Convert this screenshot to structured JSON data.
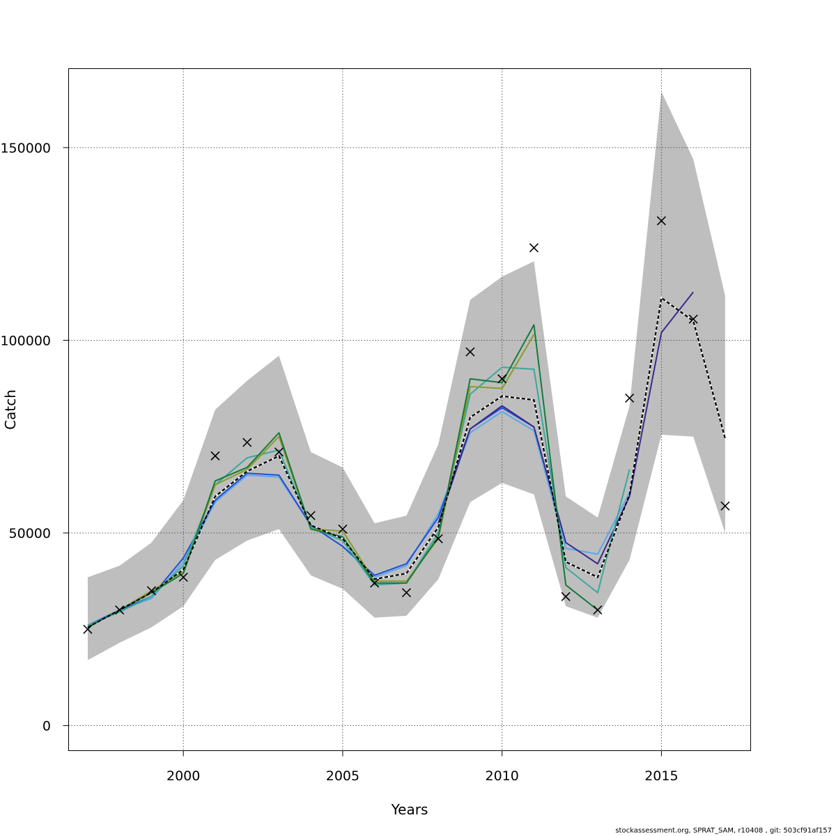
{
  "chart_data": {
    "type": "line",
    "title": "",
    "xlabel": "Years",
    "ylabel": "Catch",
    "xlim": [
      1996.4,
      2017.8
    ],
    "ylim": [
      -6500,
      170500
    ],
    "x_ticks": [
      2000,
      2005,
      2010,
      2015
    ],
    "y_ticks": [
      0,
      50000,
      100000,
      150000
    ],
    "x_tick_labels": [
      "2000",
      "2005",
      "2010",
      "2015"
    ],
    "y_tick_labels": [
      "0",
      "50000",
      "100000",
      "150000"
    ],
    "grid": true,
    "legend": "none",
    "confidence_band": {
      "color": "#bebebe",
      "x": [
        1997,
        1998,
        1999,
        2000,
        2001,
        2002,
        2003,
        2004,
        2005,
        2006,
        2007,
        2008,
        2009,
        2010,
        2011,
        2012,
        2013,
        2014,
        2015,
        2016,
        2017
      ],
      "lower": [
        17000,
        21500,
        25500,
        31000,
        43000,
        48000,
        51000,
        39000,
        35500,
        28000,
        28500,
        38000,
        58000,
        63000,
        60000,
        31000,
        28000,
        43000,
        75500,
        75000,
        50000
      ],
      "upper": [
        38500,
        41500,
        47500,
        58500,
        82000,
        89500,
        96000,
        71000,
        67000,
        52500,
        54500,
        73000,
        110500,
        116500,
        120500,
        59500,
        54000,
        83000,
        164500,
        147000,
        111500
      ]
    },
    "series": [
      {
        "color": "#000000",
        "dashed": true,
        "x": [
          1997,
          1998,
          1999,
          2000,
          2001,
          2002,
          2003,
          2004,
          2005,
          2006,
          2007,
          2008,
          2009,
          2010,
          2011,
          2012,
          2013,
          2014,
          2015,
          2016,
          2017
        ],
        "values": [
          25500,
          30000,
          34500,
          40500,
          59500,
          66000,
          70000,
          52000,
          48500,
          38000,
          39500,
          51500,
          80000,
          85500,
          84500,
          42500,
          38500,
          60000,
          111000,
          105000,
          74500
        ]
      },
      {
        "color": "#5aa8ea",
        "x": [
          1997,
          1998,
          1999,
          2000,
          2001,
          2002,
          2003,
          2004,
          2005,
          2006,
          2007,
          2008,
          2009,
          2010,
          2011,
          2012,
          2013,
          2014
        ],
        "values": [
          26000,
          30000,
          33000,
          42500,
          58000,
          65000,
          64500,
          52000,
          46500,
          38500,
          41500,
          55000,
          76000,
          81500,
          76500,
          46000,
          44500,
          60500
        ]
      },
      {
        "color": "#1f4fd6",
        "x": [
          1997,
          1998,
          1999,
          2000,
          2001,
          2002,
          2003,
          2004,
          2005,
          2006,
          2007,
          2008,
          2009,
          2010,
          2011
        ],
        "values": [
          26000,
          30000,
          33500,
          43500,
          58500,
          65500,
          65000,
          52000,
          46500,
          39000,
          42000,
          54000,
          77000,
          82500,
          77500
        ]
      },
      {
        "color": "#3a2a8a",
        "x": [
          2008,
          2009,
          2010,
          2011,
          2012,
          2013,
          2014,
          2015,
          2016
        ],
        "values": [
          52500,
          77000,
          83000,
          77500,
          47500,
          42000,
          59500,
          102000,
          112500
        ]
      },
      {
        "color": "#3aa89a",
        "x": [
          1997,
          1998,
          1999,
          2000,
          2001,
          2002,
          2003,
          2004,
          2005,
          2006,
          2007,
          2008,
          2009,
          2010,
          2011,
          2012,
          2013,
          2014
        ],
        "values": [
          26000,
          29500,
          33500,
          41500,
          62500,
          69500,
          71500,
          51500,
          48000,
          36500,
          37000,
          50000,
          86000,
          93000,
          92500,
          41000,
          34500,
          66500
        ]
      },
      {
        "color": "#8a9a2a",
        "x": [
          1997,
          1998,
          1999,
          2000,
          2001,
          2002,
          2003,
          2004,
          2005,
          2006,
          2007,
          2008,
          2009,
          2010,
          2011
        ],
        "values": [
          25500,
          30000,
          35000,
          40000,
          62500,
          66500,
          75000,
          51000,
          50500,
          37500,
          37500,
          48500,
          88000,
          87500,
          101500
        ]
      },
      {
        "color": "#157a3a",
        "x": [
          1997,
          1998,
          1999,
          2000,
          2001,
          2002,
          2003,
          2004,
          2005,
          2006,
          2007,
          2008,
          2009,
          2010,
          2011,
          2012,
          2013
        ],
        "values": [
          25500,
          30000,
          34500,
          39500,
          63500,
          67000,
          76000,
          51000,
          49000,
          37000,
          37000,
          49000,
          90000,
          89000,
          104000,
          36500,
          30000
        ]
      }
    ],
    "observations": {
      "marker": "x",
      "x": [
        1997,
        1998,
        1999,
        2000,
        2001,
        2002,
        2003,
        2004,
        2005,
        2006,
        2007,
        2008,
        2009,
        2010,
        2011,
        2012,
        2013,
        2014,
        2015,
        2016,
        2017
      ],
      "values": [
        25000,
        30000,
        35000,
        38500,
        70000,
        73500,
        71000,
        54500,
        51000,
        37000,
        34500,
        48500,
        97000,
        90000,
        124000,
        33500,
        30000,
        85000,
        131000,
        105500,
        57000
      ]
    }
  },
  "footer": "stockassessment.org, SPRAT_SAM, r10408 , git: 503cf91af157"
}
